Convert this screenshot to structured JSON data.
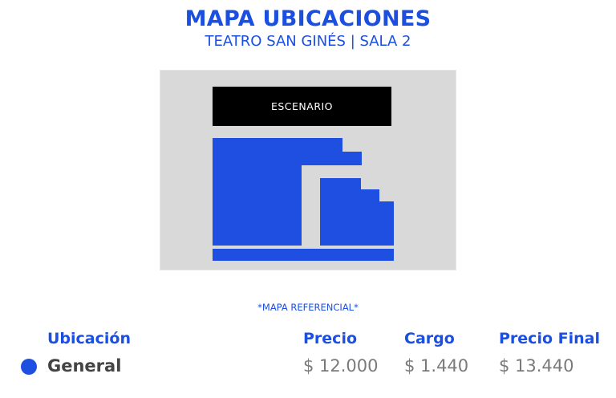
{
  "colors": {
    "accent": "#1a4fe0",
    "seat": "#1e4fe0",
    "stage": "#000000",
    "map_bg": "#d9d9d9"
  },
  "header": {
    "title": "MAPA UBICACIONES",
    "subtitle": "TEATRO SAN GINÉS | SALA 2"
  },
  "map": {
    "stage_label": "ESCENARIO",
    "note": "*MAPA REFERENCIAL*"
  },
  "table": {
    "headers": {
      "location": "Ubicación",
      "price": "Precio",
      "fee": "Cargo",
      "final": "Precio Final"
    },
    "rows": [
      {
        "location": "General",
        "price": "$ 12.000",
        "fee": "$ 1.440",
        "final": "$ 13.440",
        "color": "#1e4fe0"
      }
    ]
  }
}
